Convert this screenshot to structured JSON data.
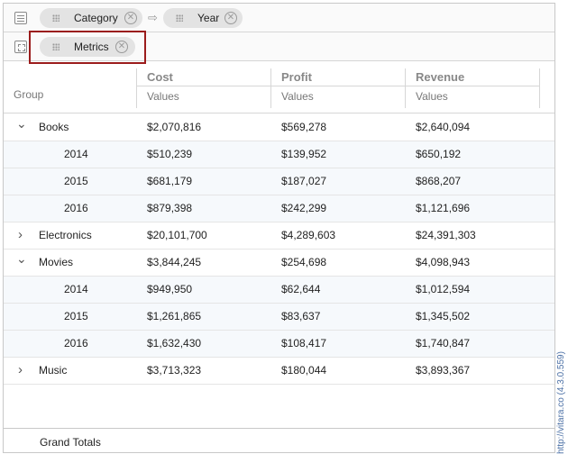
{
  "rows_zone": {
    "icon": "rows-list-icon",
    "fields": [
      {
        "label": "Category",
        "remove_icon": "close-circle-icon"
      },
      {
        "label": "Year",
        "remove_icon": "close-circle-icon"
      }
    ],
    "separator_icon": "arrow-right-icon"
  },
  "columns_zone": {
    "icon": "columns-grid-icon",
    "fields": [
      {
        "label": "Metrics",
        "remove_icon": "close-circle-icon"
      }
    ]
  },
  "table": {
    "group_header": "Group",
    "columns": [
      {
        "name": "Cost",
        "sub": "Values"
      },
      {
        "name": "Profit",
        "sub": "Values"
      },
      {
        "name": "Revenue",
        "sub": "Values"
      }
    ],
    "rows": [
      {
        "label": "Books",
        "level": 0,
        "state": "expanded",
        "values": [
          "$2,070,816",
          "$569,278",
          "$2,640,094"
        ]
      },
      {
        "label": "2014",
        "level": 1,
        "state": "leaf",
        "values": [
          "$510,239",
          "$139,952",
          "$650,192"
        ]
      },
      {
        "label": "2015",
        "level": 1,
        "state": "leaf",
        "values": [
          "$681,179",
          "$187,027",
          "$868,207"
        ]
      },
      {
        "label": "2016",
        "level": 1,
        "state": "leaf",
        "values": [
          "$879,398",
          "$242,299",
          "$1,121,696"
        ]
      },
      {
        "label": "Electronics",
        "level": 0,
        "state": "collapsed",
        "values": [
          "$20,101,700",
          "$4,289,603",
          "$24,391,303"
        ]
      },
      {
        "label": "Movies",
        "level": 0,
        "state": "expanded",
        "values": [
          "$3,844,245",
          "$254,698",
          "$4,098,943"
        ]
      },
      {
        "label": "2014",
        "level": 1,
        "state": "leaf",
        "values": [
          "$949,950",
          "$62,644",
          "$1,012,594"
        ]
      },
      {
        "label": "2015",
        "level": 1,
        "state": "leaf",
        "values": [
          "$1,261,865",
          "$83,637",
          "$1,345,502"
        ]
      },
      {
        "label": "2016",
        "level": 1,
        "state": "leaf",
        "values": [
          "$1,632,430",
          "$108,417",
          "$1,740,847"
        ]
      },
      {
        "label": "Music",
        "level": 0,
        "state": "collapsed",
        "values": [
          "$3,713,323",
          "$180,044",
          "$3,893,367"
        ]
      }
    ],
    "grand_totals_label": "Grand Totals"
  },
  "watermark": "http://vitara.co (4.3.0.559)",
  "colors": {
    "highlight": "#9b1c1c",
    "pill": "#e3e3e3",
    "child_row": "#f6f9fc",
    "watermark": "#4a6fa5"
  }
}
